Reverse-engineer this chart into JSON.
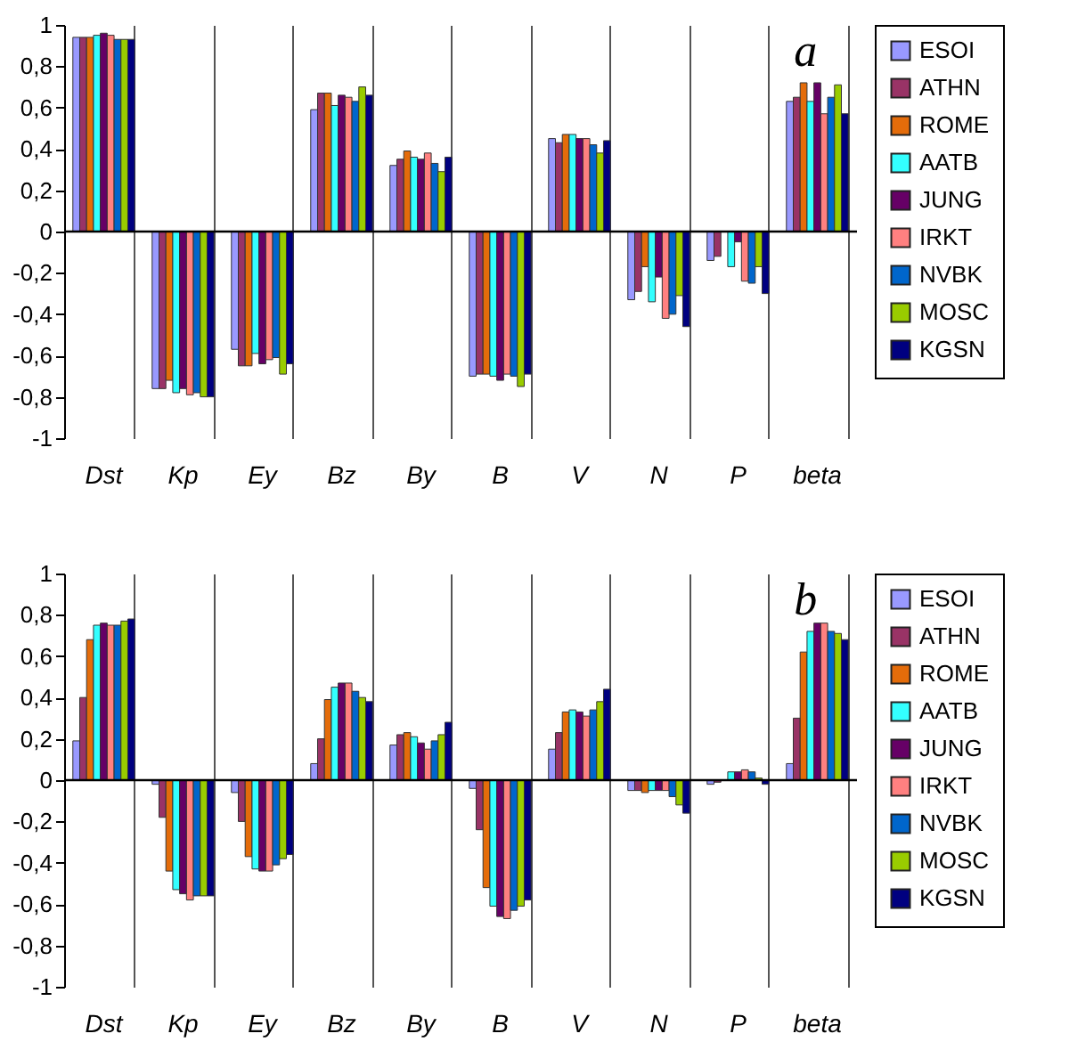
{
  "chart_data": [
    {
      "type": "bar",
      "annotations": [
        "a"
      ],
      "categories": [
        "Dst",
        "Kp",
        "Ey",
        "Bz",
        "By",
        "B",
        "V",
        "N",
        "P",
        "beta"
      ],
      "ylim": [
        -1,
        1
      ],
      "yticks": [
        {
          "value": -1,
          "label": "-1"
        },
        {
          "value": -0.8,
          "label": "-0,8"
        },
        {
          "value": -0.6,
          "label": "-0,6"
        },
        {
          "value": -0.4,
          "label": "-0,4"
        },
        {
          "value": -0.2,
          "label": "-0,2"
        },
        {
          "value": 0,
          "label": "0"
        },
        {
          "value": 0.2,
          "label": "0,2"
        },
        {
          "value": 0.4,
          "label": "0,4"
        },
        {
          "value": 0.6,
          "label": "0,6"
        },
        {
          "value": 0.8,
          "label": "0,8"
        },
        {
          "value": 1,
          "label": "1"
        }
      ],
      "grid": "x",
      "legend": "right",
      "ref_lines": [
        {
          "axis": "y",
          "value": 0,
          "color": "#000000"
        }
      ],
      "series": [
        {
          "name": "ESOI",
          "color": "#9999ff",
          "values": [
            0.94,
            -0.76,
            -0.57,
            0.59,
            0.32,
            -0.7,
            0.45,
            -0.33,
            -0.14,
            0.63
          ]
        },
        {
          "name": "ATHN",
          "color": "#993366",
          "values": [
            0.94,
            -0.76,
            -0.65,
            0.67,
            0.35,
            -0.69,
            0.43,
            -0.29,
            -0.12,
            0.65
          ]
        },
        {
          "name": "ROME",
          "color": "#e46c0a",
          "values": [
            0.94,
            -0.72,
            -0.65,
            0.67,
            0.39,
            -0.69,
            0.47,
            -0.17,
            null,
            0.72
          ]
        },
        {
          "name": "AATB",
          "color": "#33ffff",
          "values": [
            0.95,
            -0.78,
            -0.59,
            0.61,
            0.36,
            -0.7,
            0.47,
            -0.34,
            -0.17,
            0.63
          ]
        },
        {
          "name": "JUNG",
          "color": "#660066",
          "values": [
            0.96,
            -0.76,
            -0.64,
            0.66,
            0.35,
            -0.72,
            0.45,
            -0.22,
            -0.05,
            0.72
          ]
        },
        {
          "name": "IRKT",
          "color": "#ff8080",
          "values": [
            0.95,
            -0.79,
            -0.62,
            0.65,
            0.38,
            -0.69,
            0.45,
            -0.42,
            -0.24,
            0.57
          ]
        },
        {
          "name": "NVBK",
          "color": "#0066cc",
          "values": [
            0.93,
            -0.78,
            -0.61,
            0.63,
            0.33,
            -0.7,
            0.42,
            -0.4,
            -0.25,
            0.65
          ]
        },
        {
          "name": "MOSC",
          "color": "#99cc00",
          "values": [
            0.93,
            -0.8,
            -0.69,
            0.7,
            0.29,
            -0.75,
            0.38,
            -0.31,
            -0.17,
            0.71
          ]
        },
        {
          "name": "KGSN",
          "color": "#000080",
          "values": [
            0.93,
            -0.8,
            -0.64,
            0.66,
            0.36,
            -0.69,
            0.44,
            -0.46,
            -0.3,
            0.57
          ]
        }
      ]
    },
    {
      "type": "bar",
      "annotations": [
        "b"
      ],
      "categories": [
        "Dst",
        "Kp",
        "Ey",
        "Bz",
        "By",
        "B",
        "V",
        "N",
        "P",
        "beta"
      ],
      "ylim": [
        -1,
        1
      ],
      "yticks": [
        {
          "value": -1,
          "label": "-1"
        },
        {
          "value": -0.8,
          "label": "-0,8"
        },
        {
          "value": -0.6,
          "label": "-0,6"
        },
        {
          "value": -0.4,
          "label": "-0,4"
        },
        {
          "value": -0.2,
          "label": "-0,2"
        },
        {
          "value": 0,
          "label": "0"
        },
        {
          "value": 0.2,
          "label": "0,2"
        },
        {
          "value": 0.4,
          "label": "0,4"
        },
        {
          "value": 0.6,
          "label": "0,6"
        },
        {
          "value": 0.8,
          "label": "0,8"
        },
        {
          "value": 1,
          "label": "1"
        }
      ],
      "grid": "x",
      "legend": "right",
      "ref_lines": [
        {
          "axis": "y",
          "value": 0,
          "color": "#000000"
        }
      ],
      "series": [
        {
          "name": "ESOI",
          "color": "#9999ff",
          "values": [
            0.19,
            -0.02,
            -0.06,
            0.08,
            0.17,
            -0.04,
            0.15,
            -0.05,
            -0.02,
            0.08
          ]
        },
        {
          "name": "ATHN",
          "color": "#993366",
          "values": [
            0.4,
            -0.18,
            -0.2,
            0.2,
            0.22,
            -0.24,
            0.23,
            -0.05,
            -0.01,
            0.3
          ]
        },
        {
          "name": "ROME",
          "color": "#e46c0a",
          "values": [
            0.68,
            -0.44,
            -0.37,
            0.39,
            0.23,
            -0.52,
            0.33,
            -0.06,
            null,
            0.62
          ]
        },
        {
          "name": "AATB",
          "color": "#33ffff",
          "values": [
            0.75,
            -0.53,
            -0.43,
            0.45,
            0.21,
            -0.61,
            0.34,
            -0.05,
            0.04,
            0.72
          ]
        },
        {
          "name": "JUNG",
          "color": "#660066",
          "values": [
            0.76,
            -0.55,
            -0.44,
            0.47,
            0.18,
            -0.66,
            0.33,
            -0.05,
            0.04,
            0.76
          ]
        },
        {
          "name": "IRKT",
          "color": "#ff8080",
          "values": [
            0.75,
            -0.58,
            -0.44,
            0.47,
            0.15,
            -0.67,
            0.31,
            -0.05,
            0.05,
            0.76
          ]
        },
        {
          "name": "NVBK",
          "color": "#0066cc",
          "values": [
            0.75,
            -0.56,
            -0.41,
            0.43,
            0.19,
            -0.63,
            0.34,
            -0.08,
            0.04,
            0.72
          ]
        },
        {
          "name": "MOSC",
          "color": "#99cc00",
          "values": [
            0.77,
            -0.56,
            -0.38,
            0.4,
            0.22,
            -0.61,
            0.38,
            -0.12,
            0.01,
            0.71
          ]
        },
        {
          "name": "KGSN",
          "color": "#000080",
          "values": [
            0.78,
            -0.56,
            -0.36,
            0.38,
            0.28,
            -0.58,
            0.44,
            -0.16,
            -0.02,
            0.68
          ]
        }
      ]
    }
  ]
}
